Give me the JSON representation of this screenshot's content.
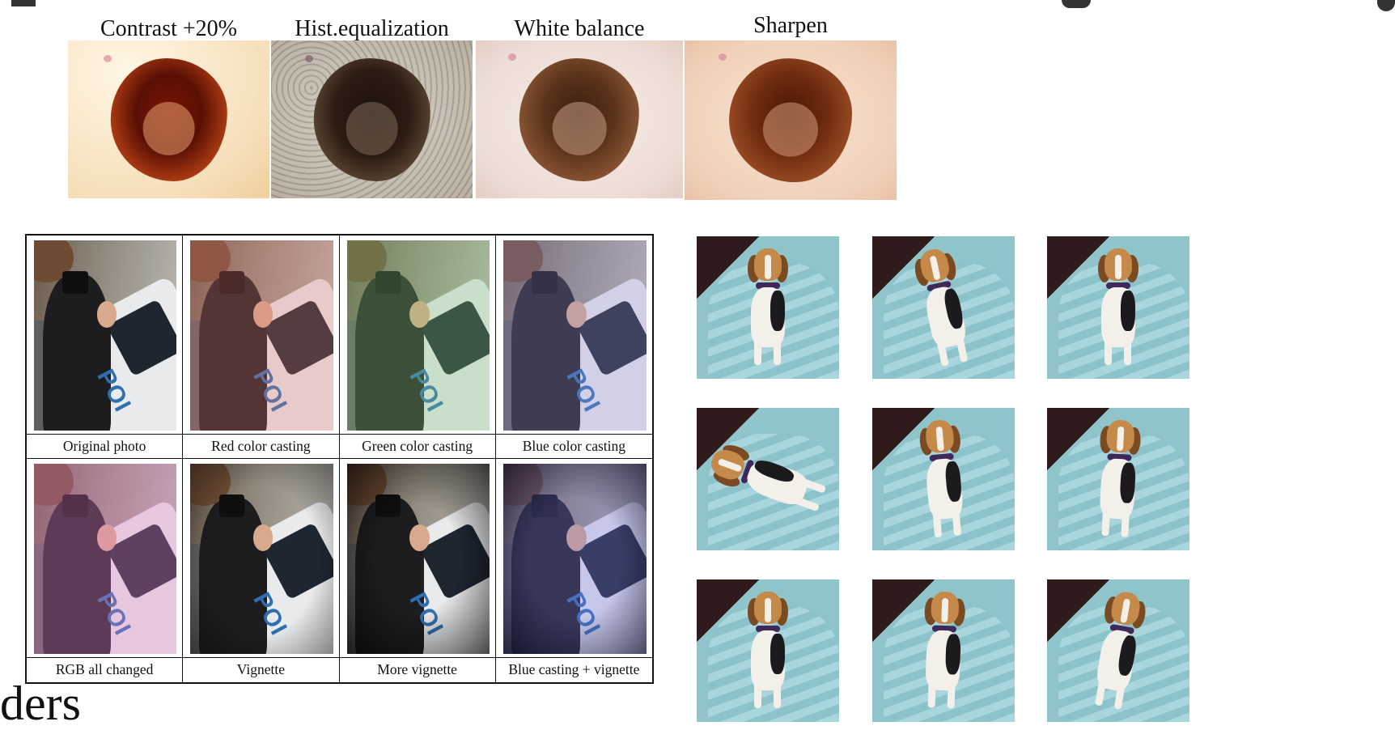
{
  "lesion_row": {
    "captions": [
      "Contrast +20%",
      "Hist.equalization",
      "White balance",
      "Sharpen"
    ]
  },
  "color_casting_table": {
    "top_captions": [
      "Original photo",
      "Red color casting",
      "Green color casting",
      "Blue color casting"
    ],
    "bottom_captions": [
      "RGB all changed",
      "Vignette",
      "More vignette",
      "Blue casting + vignette"
    ]
  },
  "photo_text": "POI",
  "dog_grid": {
    "rows": 3,
    "cols": 3
  },
  "heading_fragment": "ders"
}
